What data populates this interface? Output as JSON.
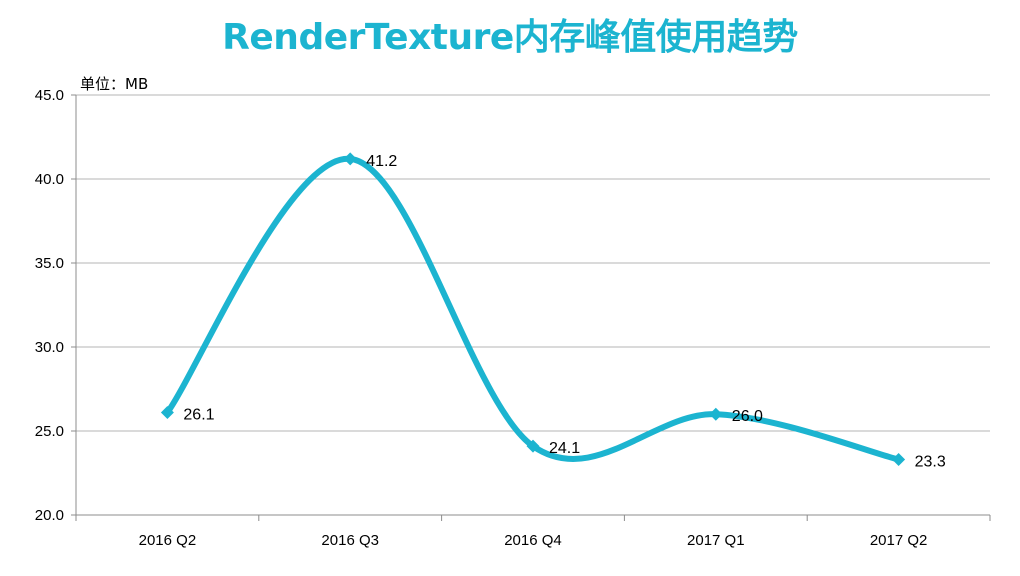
{
  "chart_data": {
    "type": "line",
    "title": "RenderTexture内存峰值使用趋势",
    "unit_label": "单位：MB",
    "categories": [
      "2016 Q2",
      "2016 Q3",
      "2016 Q4",
      "2017 Q1",
      "2017 Q2"
    ],
    "series": [
      {
        "values": [
          26.1,
          41.2,
          24.1,
          26.0,
          23.3
        ],
        "color": "#1cb4d0"
      }
    ],
    "data_labels": [
      "26.1",
      "41.2",
      "24.1",
      "26.0",
      "23.3"
    ],
    "ylim": [
      20,
      45
    ],
    "yticks": [
      "20.0",
      "25.0",
      "30.0",
      "35.0",
      "40.0",
      "45.0"
    ],
    "grid": true,
    "smooth": true,
    "marker": "diamond"
  }
}
